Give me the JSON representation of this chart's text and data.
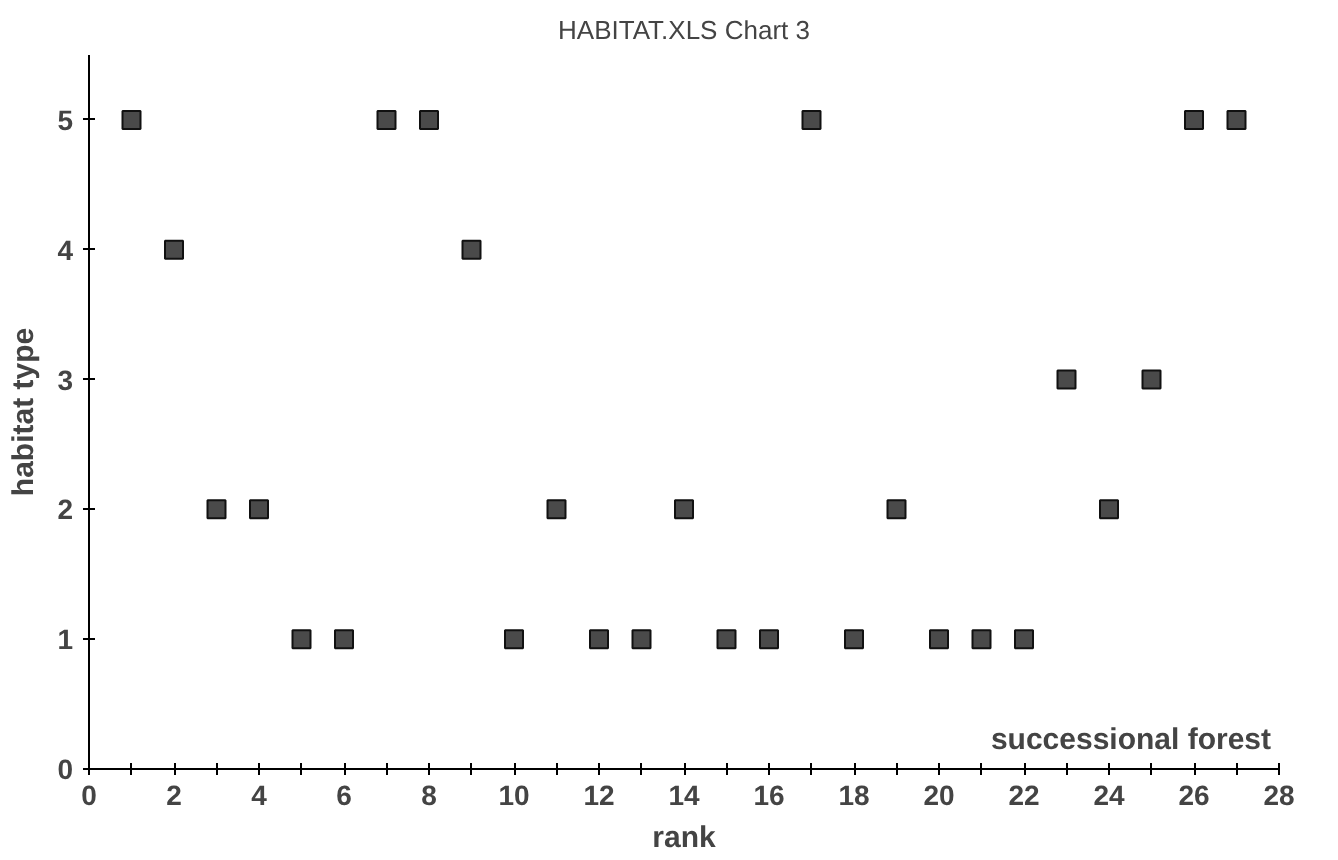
{
  "chart_data": {
    "type": "scatter",
    "title": "HABITAT.XLS Chart 3",
    "xlabel": "rank",
    "ylabel": "habitat type",
    "x": [
      1,
      2,
      3,
      4,
      5,
      6,
      7,
      8,
      9,
      10,
      11,
      12,
      13,
      14,
      15,
      16,
      17,
      18,
      19,
      20,
      21,
      22,
      23,
      24,
      25,
      26,
      27
    ],
    "values": [
      5,
      4,
      2,
      2,
      1,
      1,
      5,
      5,
      4,
      1,
      2,
      1,
      1,
      2,
      1,
      1,
      5,
      1,
      2,
      1,
      1,
      1,
      3,
      2,
      3,
      5,
      5
    ],
    "color": "#4a4a4a",
    "marker": "square",
    "xlim": [
      0,
      28
    ],
    "ylim": [
      0,
      5.5
    ],
    "xticks": [
      0,
      {
        "value": 1,
        "label": null
      },
      2,
      {
        "value": 3,
        "label": null
      },
      4,
      {
        "value": 5,
        "label": null
      },
      6,
      {
        "value": 7,
        "label": null
      },
      8,
      {
        "value": 9,
        "label": null
      },
      10,
      {
        "value": 11,
        "label": null
      },
      12,
      {
        "value": 13,
        "label": null
      },
      14,
      {
        "value": 15,
        "label": null
      },
      16,
      {
        "value": 17,
        "label": null
      },
      18,
      {
        "value": 19,
        "label": null
      },
      20,
      {
        "value": 21,
        "label": null
      },
      22,
      {
        "value": 23,
        "label": null
      },
      24,
      {
        "value": 25,
        "label": null
      },
      26,
      {
        "value": 27,
        "label": null
      },
      28
    ],
    "yticks": [
      0,
      1,
      2,
      3,
      4,
      5
    ],
    "annotations": [
      "successional forest"
    ],
    "grid": false
  }
}
